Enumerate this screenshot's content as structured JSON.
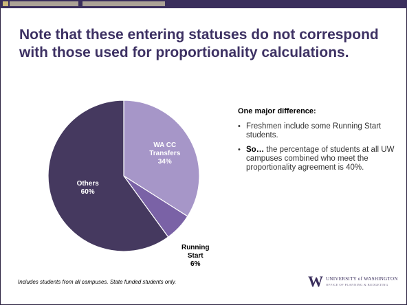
{
  "slide": {
    "title": "Note that these entering statuses do not correspond with those used for proportionality calculations.",
    "subhead": "One major difference:",
    "bullets": [
      {
        "lead": "",
        "text": "Freshmen include some Running Start students."
      },
      {
        "lead": "So…",
        "text": " the percentage of students at all UW campuses combined who meet the proportionality agreement is 40%."
      }
    ],
    "footnote": "Includes students from all campuses. State funded students only.",
    "logo": {
      "mark": "W",
      "line1": "UNIVERSITY of WASHINGTON",
      "line2": "OFFICE OF PLANNING & BUDGETING"
    }
  },
  "chart_data": {
    "type": "pie",
    "slices": [
      {
        "label": "WA CC Transfers",
        "label_lines": [
          "WA CC",
          "Transfers"
        ],
        "value": 34,
        "value_text": "34%",
        "color": "#a696c8"
      },
      {
        "label": "Running Start",
        "label_lines": [
          "Running",
          "Start"
        ],
        "value": 6,
        "value_text": "6%",
        "color": "#7a62a6"
      },
      {
        "label": "Others",
        "label_lines": [
          "Others"
        ],
        "value": 60,
        "value_text": "60%",
        "color": "#45395f"
      }
    ],
    "start_angle_deg": 0,
    "direction": "clockwise"
  }
}
